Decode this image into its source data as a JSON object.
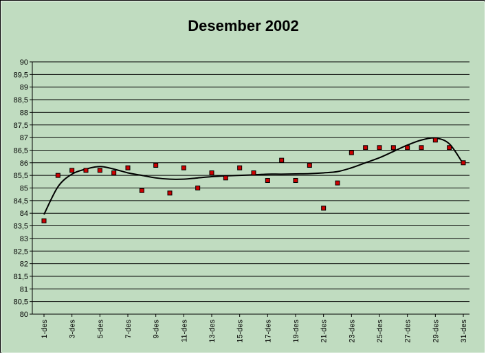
{
  "chart_data": {
    "type": "scatter",
    "title": "Desember 2002",
    "xlabel": "",
    "ylabel": "",
    "ylim": [
      80,
      90
    ],
    "ytick_step": 0.5,
    "grid": true,
    "legend": "none",
    "colors": {
      "background": "#c0dcc0",
      "marker": "#cc0000",
      "trend": "#000000",
      "grid": "#000000"
    },
    "x_labels": [
      "1-des",
      "3-des",
      "5-des",
      "7-des",
      "9-des",
      "11-des",
      "13-des",
      "15-des",
      "17-des",
      "19-des",
      "21-des",
      "23-des",
      "25-des",
      "27-des",
      "29-des",
      "31-des"
    ],
    "days": [
      1,
      2,
      3,
      4,
      5,
      6,
      7,
      8,
      9,
      10,
      11,
      12,
      13,
      14,
      15,
      16,
      17,
      18,
      19,
      20,
      21,
      22,
      23,
      24,
      25,
      26,
      27,
      28,
      29,
      30,
      31
    ],
    "values": [
      83.7,
      85.5,
      85.7,
      85.7,
      85.7,
      85.6,
      85.8,
      84.9,
      85.9,
      84.8,
      85.8,
      85.0,
      85.6,
      85.4,
      85.8,
      85.6,
      85.3,
      86.1,
      85.3,
      85.9,
      84.2,
      85.2,
      86.4,
      86.6,
      86.6,
      86.6,
      86.6,
      86.6,
      86.9,
      86.6,
      86.0
    ],
    "trendline": [
      83.95,
      85.05,
      85.55,
      85.75,
      85.85,
      85.75,
      85.6,
      85.5,
      85.4,
      85.35,
      85.35,
      85.4,
      85.45,
      85.48,
      85.5,
      85.52,
      85.55,
      85.55,
      85.56,
      85.57,
      85.6,
      85.65,
      85.8,
      86.0,
      86.2,
      86.45,
      86.7,
      86.9,
      86.98,
      86.75,
      85.95
    ]
  }
}
